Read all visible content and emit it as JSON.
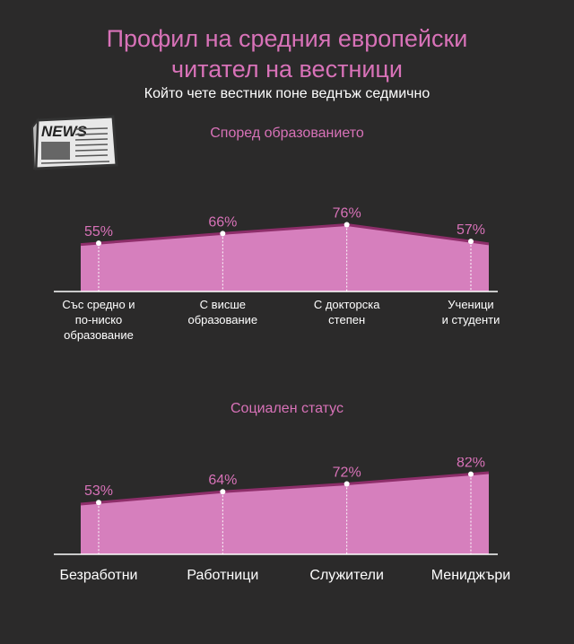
{
  "title_line1": "Профил на средния европейски",
  "title_line2": "читател на вестници",
  "subtitle": "Който чете вестник поне веднъж седмично",
  "icon": "newspaper-icon",
  "icon_text": "NEWS",
  "colors": {
    "fill": "#d67fbd",
    "line": "#8e2e6a",
    "label": "#d872b8",
    "text": "#ffffff",
    "background": "#2b2a2a"
  },
  "chart_data": [
    {
      "type": "area",
      "title": "Според образованието",
      "categories": [
        [
          "Със средно и",
          "по-ниско",
          "образование"
        ],
        [
          "С висше",
          "образование"
        ],
        [
          "С докторска",
          "степен"
        ],
        [
          "Ученици",
          "и студенти"
        ]
      ],
      "values": [
        55,
        66,
        76,
        57
      ],
      "value_labels": [
        "55%",
        "66%",
        "76%",
        "57%"
      ],
      "ylim": [
        0,
        100
      ],
      "grid": false,
      "legend": "none"
    },
    {
      "type": "area",
      "title": "Социален статус",
      "categories": [
        [
          "Безработни"
        ],
        [
          "Работници"
        ],
        [
          "Служители"
        ],
        [
          "Мениджъри"
        ]
      ],
      "values": [
        53,
        64,
        72,
        82
      ],
      "value_labels": [
        "53%",
        "64%",
        "72%",
        "82%"
      ],
      "ylim": [
        0,
        100
      ],
      "grid": false,
      "legend": "none"
    }
  ]
}
